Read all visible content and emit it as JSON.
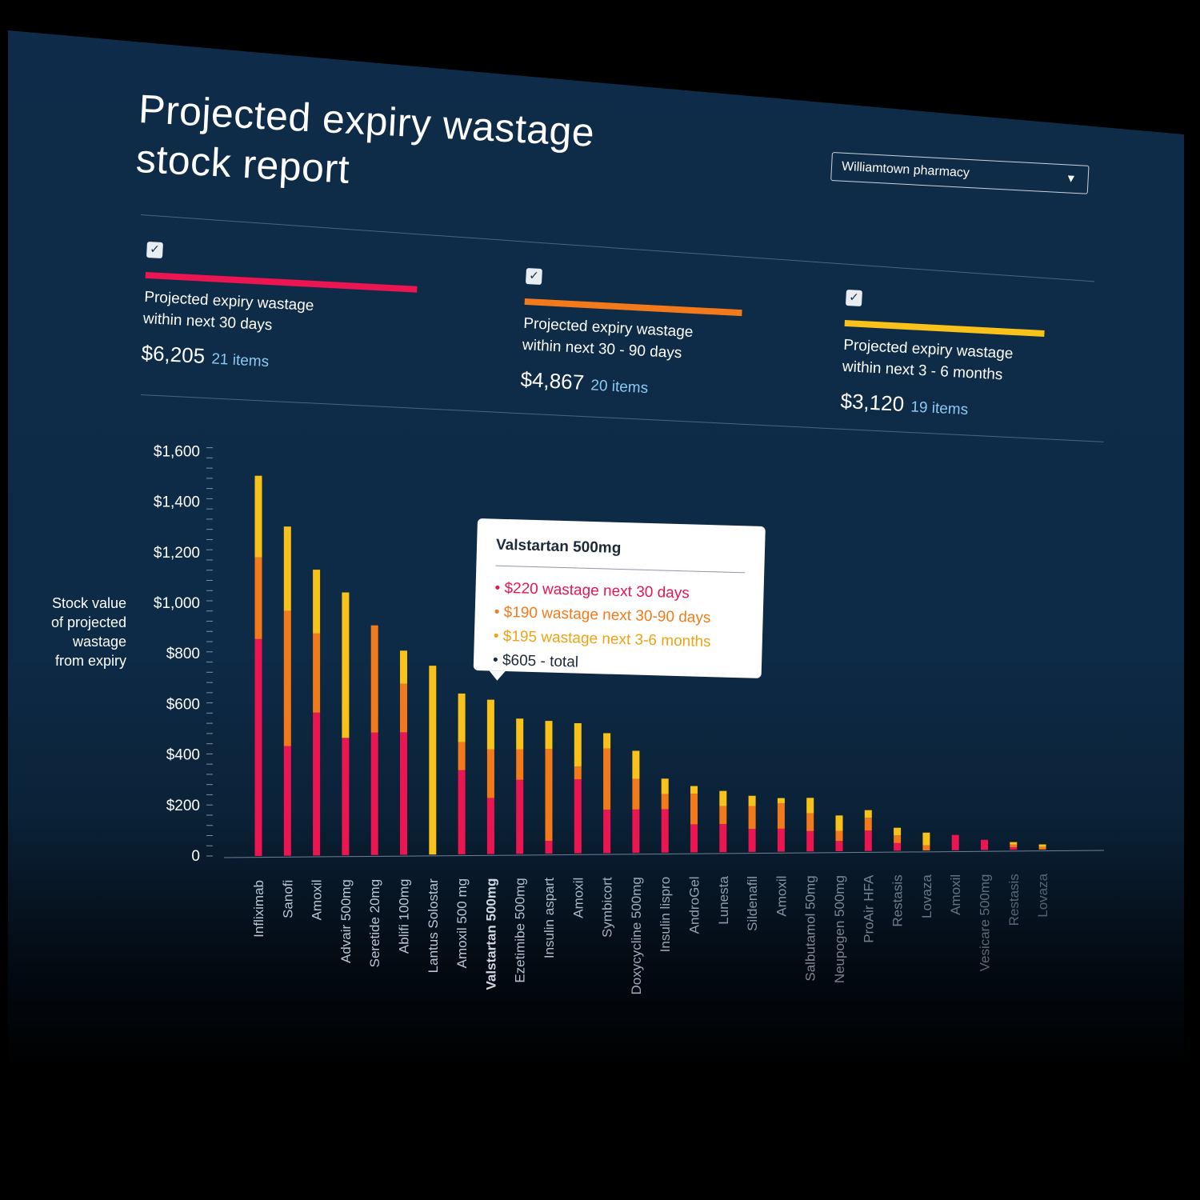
{
  "title_line1": "Projected expiry wastage",
  "title_line2": "stock report",
  "dropdown": {
    "selected": "Williamtown pharmacy",
    "caret": "▼"
  },
  "check_glyph": "✓",
  "cards": [
    {
      "label1": "Projected expiry wastage",
      "label2": "within next 30 days",
      "amount": "$6,205",
      "items": "21 items",
      "color": "#ea1551"
    },
    {
      "label1": "Projected expiry wastage",
      "label2": "within next 30 - 90 days",
      "amount": "$4,867",
      "items": "20 items",
      "color": "#f37a1a"
    },
    {
      "label1": "Projected expiry wastage",
      "label2": "within next 3 - 6 months",
      "amount": "$3,120",
      "items": "19 items",
      "color": "#f8c21a"
    }
  ],
  "tooltip": {
    "title": "Valstartan 500mg",
    "line1": "• $220 wastage next 30 days",
    "line2": "• $190 wastage next 30-90 days",
    "line3": "• $195 wastage next 3-6 months",
    "line4": "• $605 - total"
  },
  "chart_data": {
    "type": "bar",
    "stacked": true,
    "ylabel_lines": [
      "Stock value",
      "of projected",
      "wastage",
      "from expiry"
    ],
    "ylim": [
      0,
      1600
    ],
    "yticks": [
      0,
      200,
      400,
      600,
      800,
      1000,
      1200,
      1400,
      1600
    ],
    "ytick_labels": [
      "0",
      "$200",
      "$400",
      "$600",
      "$800",
      "$1,000",
      "$1,200",
      "$1,400",
      "$1,600"
    ],
    "highlighted": "Valstartan 500mg",
    "categories": [
      "Infliximab",
      "Sanofi",
      "Amoxil",
      "Advair 500mg",
      "Seretide 20mg",
      "Ablifi 100mg",
      "Lantus Solostar",
      "Amoxil 500 mg",
      "Valstartan 500mg",
      "Ezetimibe 500mg",
      "Insulin aspart",
      "Amoxil",
      "Symbicort",
      "Doxycycline 500mg",
      "Insulin lispro",
      "AndroGel",
      "Lunesta",
      "Sildenafil",
      "Amoxil",
      "Salbutamol 50mg",
      "Neupogen 500mg",
      "ProAir HFA",
      "Restasis",
      "Lovaza",
      "Amoxil",
      "Vesicare 500mg",
      "Restasis",
      "Lovaza"
    ],
    "series": [
      {
        "name": "next 30 days",
        "color": "#ea1551",
        "values": [
          850,
          430,
          560,
          460,
          480,
          480,
          0,
          330,
          220,
          290,
          50,
          290,
          170,
          170,
          170,
          110,
          110,
          90,
          90,
          80,
          40,
          80,
          30,
          0,
          60,
          40,
          10,
          0
        ]
      },
      {
        "name": "next 30-90 days",
        "color": "#f37a1a",
        "values": [
          320,
          530,
          310,
          0,
          420,
          190,
          0,
          110,
          190,
          120,
          360,
          50,
          240,
          120,
          60,
          120,
          70,
          90,
          100,
          70,
          40,
          50,
          30,
          20,
          0,
          0,
          10,
          10
        ]
      },
      {
        "name": "next 3-6 months",
        "color": "#f8c21a",
        "values": [
          320,
          330,
          250,
          570,
          0,
          130,
          740,
          190,
          195,
          120,
          110,
          170,
          60,
          110,
          60,
          30,
          60,
          40,
          20,
          60,
          60,
          30,
          30,
          50,
          0,
          0,
          10,
          10
        ]
      }
    ]
  }
}
